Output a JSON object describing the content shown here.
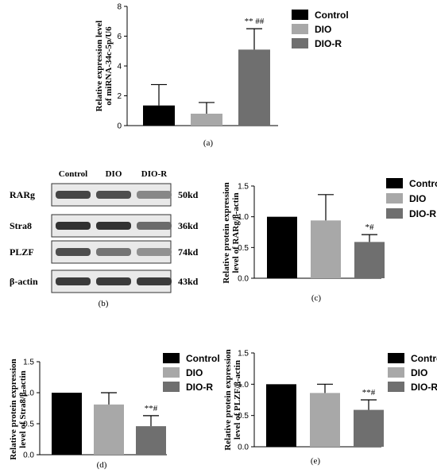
{
  "colors": {
    "Control": "#000000",
    "DIO": "#a8a8a8",
    "DIO-R": "#6f6f6f",
    "axis": "#000000"
  },
  "legend": [
    "Control",
    "DIO",
    "DIO-R"
  ],
  "chart_data": [
    {
      "id": "a",
      "type": "bar",
      "caption": "(a)",
      "categories": [
        "Control",
        "DIO",
        "DIO-R"
      ],
      "values": [
        1.35,
        0.8,
        5.1
      ],
      "errors": [
        1.4,
        0.75,
        1.4
      ],
      "significance": [
        "",
        "",
        "** ##"
      ],
      "ylabel_lines": [
        "Relative expression level",
        "of miRNA-34c-5p/U6"
      ],
      "ylim": [
        0,
        8
      ],
      "yticks": [
        0,
        2,
        4,
        6,
        8
      ],
      "tick_labels": [
        "0",
        "2",
        "4",
        "6",
        "8"
      ],
      "legend_position": "top-right"
    },
    {
      "id": "c",
      "type": "bar",
      "caption": "(c)",
      "categories": [
        "Control",
        "DIO",
        "DIO-R"
      ],
      "values": [
        1.0,
        0.94,
        0.59
      ],
      "errors": [
        0,
        0.42,
        0.12
      ],
      "significance": [
        "",
        "",
        "*#"
      ],
      "ylabel_lines": [
        "Relative protein expression",
        "level of RARg/β-actin"
      ],
      "ylim": [
        0,
        1.5
      ],
      "yticks": [
        0,
        0.5,
        1.0,
        1.5
      ],
      "tick_labels": [
        "0.0",
        "0.5",
        "1.0",
        "1.5"
      ],
      "legend_position": "top-right"
    },
    {
      "id": "d",
      "type": "bar",
      "caption": "(d)",
      "categories": [
        "Control",
        "DIO",
        "DIO-R"
      ],
      "values": [
        1.0,
        0.81,
        0.46
      ],
      "errors": [
        0,
        0.19,
        0.17
      ],
      "significance": [
        "",
        "",
        "**#"
      ],
      "ylabel_lines": [
        "Relative protein expression",
        "level of Stra8/β-actin"
      ],
      "ylim": [
        0,
        1.5
      ],
      "yticks": [
        0,
        0.5,
        1.0,
        1.5
      ],
      "tick_labels": [
        "0.0",
        "0.5",
        "1.0",
        "1.5"
      ],
      "legend_position": "top-right"
    },
    {
      "id": "e",
      "type": "bar",
      "caption": "(e)",
      "categories": [
        "Control",
        "DIO",
        "DIO-R"
      ],
      "values": [
        1.0,
        0.86,
        0.59
      ],
      "errors": [
        0,
        0.14,
        0.16
      ],
      "significance": [
        "",
        "",
        "**#"
      ],
      "ylabel_lines": [
        "Relative protein expression",
        "level of PLZF/β-actin"
      ],
      "ylim": [
        0,
        1.5
      ],
      "yticks": [
        0,
        0.5,
        1.0,
        1.5
      ],
      "tick_labels": [
        "0.0",
        "0.5",
        "1.0",
        "1.5"
      ],
      "legend_position": "top-right"
    }
  ],
  "blot": {
    "caption": "(b)",
    "lanes": [
      "Control",
      "DIO",
      "DIO-R"
    ],
    "rows": [
      {
        "protein": "RARg",
        "size": "50kd",
        "intensity": [
          0.85,
          0.8,
          0.5
        ]
      },
      {
        "protein": "Stra8",
        "size": "36kd",
        "intensity": [
          0.95,
          0.95,
          0.65
        ]
      },
      {
        "protein": "PLZF",
        "size": "74kd",
        "intensity": [
          0.8,
          0.6,
          0.45
        ]
      },
      {
        "protein": "β-actin",
        "size": "43kd",
        "intensity": [
          0.9,
          0.9,
          0.9
        ]
      }
    ]
  }
}
